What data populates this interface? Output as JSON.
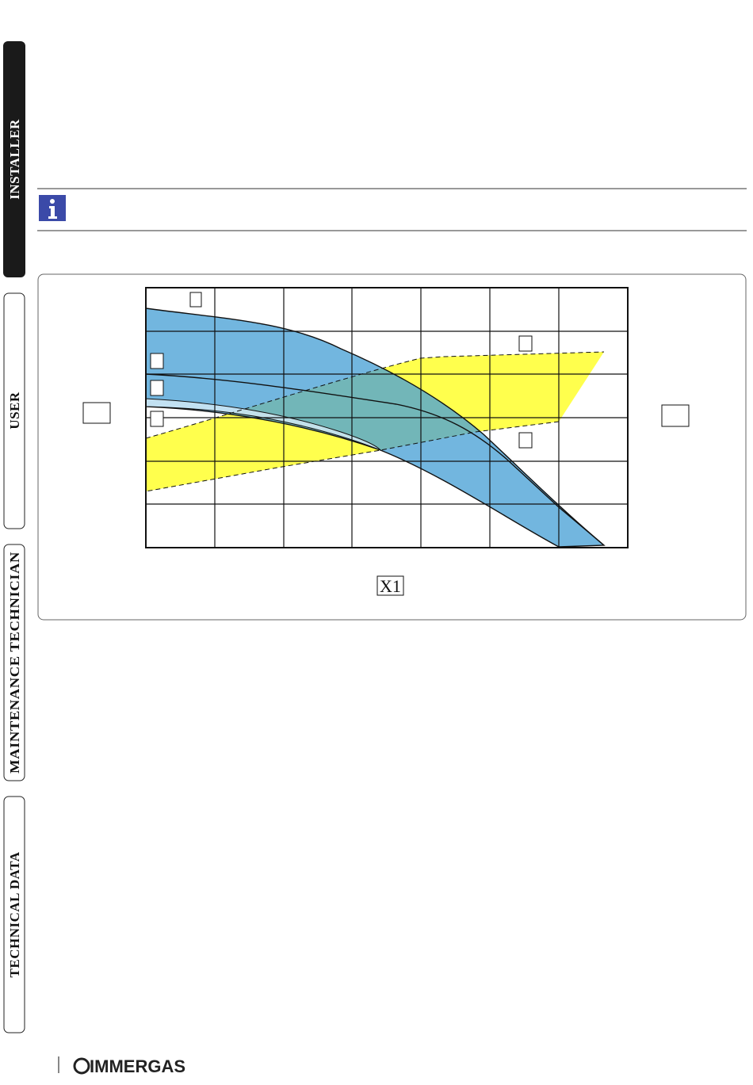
{
  "tabs": [
    "INSTALLER",
    "USER",
    "MAINTENANCE TECHNICIAN",
    "TECHNICAL DATA"
  ],
  "figure": {
    "x_label": "X1"
  },
  "footer": {
    "logo": "IMMERGAS"
  }
}
